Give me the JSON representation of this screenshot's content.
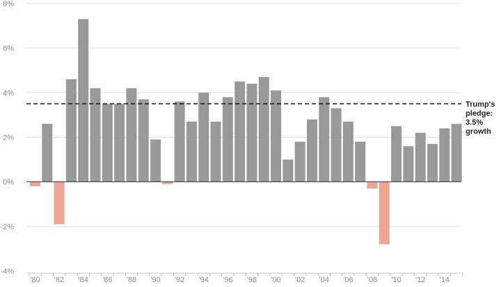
{
  "chart_data": {
    "type": "bar",
    "title": "",
    "xlabel": "",
    "ylabel": "",
    "x": [
      1980,
      1981,
      1982,
      1983,
      1984,
      1985,
      1986,
      1987,
      1988,
      1989,
      1990,
      1991,
      1992,
      1993,
      1994,
      1995,
      1996,
      1997,
      1998,
      1999,
      2000,
      2001,
      2002,
      2003,
      2004,
      2005,
      2006,
      2007,
      2008,
      2009,
      2010,
      2011,
      2012,
      2013,
      2014,
      2015
    ],
    "values": [
      -0.2,
      2.6,
      -1.9,
      4.6,
      7.3,
      4.2,
      3.5,
      3.5,
      4.2,
      3.7,
      1.9,
      -0.1,
      3.6,
      2.7,
      4.0,
      2.7,
      3.8,
      4.5,
      4.4,
      4.7,
      4.1,
      1.0,
      1.8,
      2.8,
      3.8,
      3.3,
      2.7,
      1.8,
      -0.3,
      -2.8,
      2.5,
      1.6,
      2.2,
      1.7,
      2.4,
      2.6
    ],
    "ylim": [
      -4,
      8
    ],
    "yticks": [
      -4,
      -2,
      0,
      2,
      4,
      6,
      8
    ],
    "ytick_labels": [
      "-4%",
      "-2%",
      "0%",
      "2%",
      "4%",
      "6%",
      "8%"
    ],
    "xtick_labels": [
      "'80",
      "'82",
      "'84",
      "'86",
      "'88",
      "'90",
      "'92",
      "'94",
      "'96",
      "'98",
      "'00",
      "'02",
      "'04",
      "'06",
      "'08",
      "'10",
      "'12",
      "'14"
    ],
    "xtick_years": [
      1980,
      1982,
      1984,
      1986,
      1988,
      1990,
      1992,
      1994,
      1996,
      1998,
      2000,
      2002,
      2004,
      2006,
      2008,
      2010,
      2012,
      2014
    ],
    "reference_line": {
      "value": 3.5,
      "label_lines": [
        "Trump's",
        "pledge:",
        "3.5%",
        "growth"
      ]
    },
    "grid": true,
    "colors": {
      "positive": "#999999",
      "negative": "#efa494",
      "reference": "#111111"
    }
  }
}
